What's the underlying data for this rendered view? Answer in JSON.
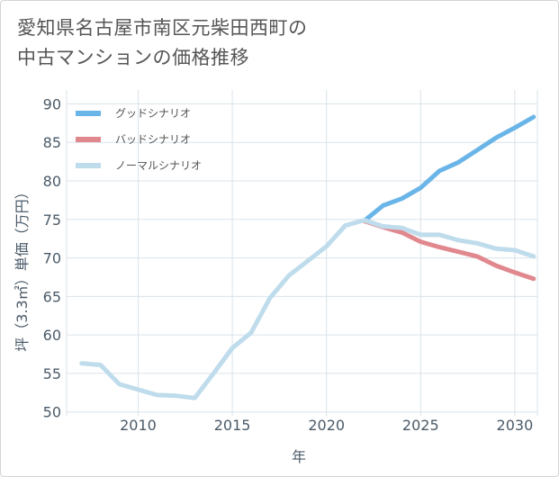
{
  "title_lines": [
    "愛知県名古屋市南区元柴田西町の",
    "中古マンションの価格推移"
  ],
  "chart_data": {
    "type": "line",
    "xlabel": "年",
    "ylabel": "坪（3.3㎡）単価（万円）",
    "xlim": [
      2006.2,
      2031.2
    ],
    "ylim": [
      49.5,
      91.8
    ],
    "xticks": [
      2010,
      2015,
      2020,
      2025,
      2030
    ],
    "yticks": [
      50,
      55,
      60,
      65,
      70,
      75,
      80,
      85,
      90
    ],
    "grid": true,
    "legend_position": "top-left",
    "series": [
      {
        "name": "グッドシナリオ",
        "color": "#6ab5e8",
        "x": [
          2022,
          2023,
          2024,
          2025,
          2026,
          2027,
          2028,
          2029,
          2030,
          2031
        ],
        "values": [
          74.8,
          76.8,
          77.7,
          79.1,
          81.3,
          82.4,
          84.0,
          85.6,
          86.9,
          88.3
        ]
      },
      {
        "name": "バッドシナリオ",
        "color": "#e0888e",
        "x": [
          2022,
          2023,
          2024,
          2025,
          2026,
          2027,
          2028,
          2029,
          2030,
          2031
        ],
        "values": [
          74.8,
          74.0,
          73.3,
          72.1,
          71.4,
          70.8,
          70.2,
          69.0,
          68.1,
          67.3
        ]
      },
      {
        "name": "ノーマルシナリオ",
        "color": "#bfdcec",
        "x": [
          2007,
          2008,
          2009,
          2010,
          2011,
          2012,
          2013,
          2014,
          2015,
          2016,
          2017,
          2018,
          2019,
          2020,
          2021,
          2022,
          2023,
          2024,
          2025,
          2026,
          2027,
          2028,
          2029,
          2030,
          2031
        ],
        "values": [
          56.3,
          56.1,
          53.6,
          52.9,
          52.2,
          52.1,
          51.8,
          55.0,
          58.3,
          60.3,
          64.8,
          67.7,
          69.6,
          71.5,
          74.2,
          74.9,
          74.1,
          73.9,
          73.0,
          73.0,
          72.3,
          71.9,
          71.2,
          71.0,
          70.2
        ]
      }
    ]
  }
}
